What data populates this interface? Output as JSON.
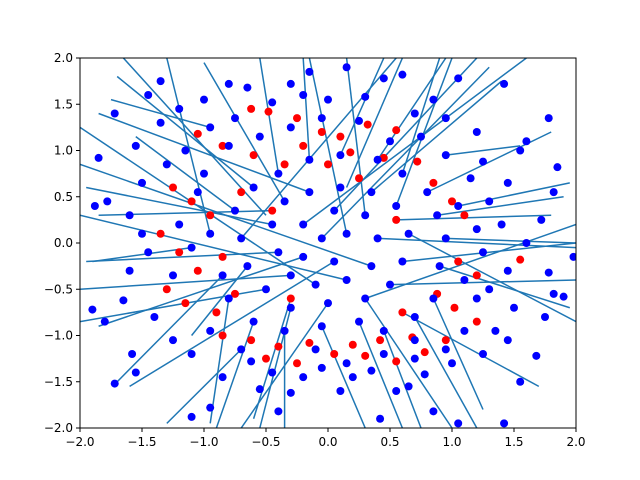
{
  "chart_data": {
    "type": "scatter",
    "title": "",
    "xlabel": "",
    "ylabel": "",
    "xlim": [
      -2.0,
      2.0
    ],
    "ylim": [
      -2.0,
      2.0
    ],
    "grid": false,
    "x_ticks": [
      "−2.0",
      "−1.5",
      "−1.0",
      "−0.5",
      "0.0",
      "0.5",
      "1.0",
      "1.5",
      "2.0"
    ],
    "y_ticks": [
      "−2.0",
      "−1.5",
      "−1.0",
      "−0.5",
      "0.0",
      "0.5",
      "1.0",
      "1.5",
      "2.0"
    ],
    "colors": {
      "line": "#1f77b4",
      "blue_points": "#0000ff",
      "red_points": "#ff0000",
      "axes": "#000000"
    },
    "series": [
      {
        "color": "red",
        "points": [
          [
            -0.62,
            1.45
          ],
          [
            -0.48,
            1.42
          ],
          [
            -0.25,
            1.35
          ],
          [
            -0.05,
            1.2
          ],
          [
            0.1,
            1.15
          ],
          [
            0.32,
            1.28
          ],
          [
            0.55,
            1.22
          ],
          [
            -1.05,
            1.18
          ],
          [
            -0.85,
            1.05
          ],
          [
            -0.6,
            0.95
          ],
          [
            -0.35,
            0.85
          ],
          [
            0.18,
            0.98
          ],
          [
            0.45,
            0.92
          ],
          [
            0.72,
            0.88
          ],
          [
            -1.25,
            0.6
          ],
          [
            -1.1,
            0.45
          ],
          [
            -0.95,
            0.3
          ],
          [
            -0.7,
            0.55
          ],
          [
            0.85,
            0.65
          ],
          [
            1.0,
            0.45
          ],
          [
            1.1,
            0.3
          ],
          [
            -1.35,
            0.1
          ],
          [
            -1.2,
            -0.1
          ],
          [
            -1.05,
            -0.3
          ],
          [
            -0.85,
            -0.15
          ],
          [
            1.05,
            -0.2
          ],
          [
            1.2,
            -0.35
          ],
          [
            1.55,
            -0.18
          ],
          [
            -1.3,
            -0.5
          ],
          [
            -1.15,
            -0.65
          ],
          [
            -0.9,
            -0.75
          ],
          [
            -0.75,
            -0.55
          ],
          [
            0.88,
            -0.55
          ],
          [
            1.02,
            -0.7
          ],
          [
            1.2,
            -0.85
          ],
          [
            -0.85,
            -1.0
          ],
          [
            -0.62,
            -1.05
          ],
          [
            -0.4,
            -1.12
          ],
          [
            -0.15,
            -1.08
          ],
          [
            0.2,
            -1.1
          ],
          [
            0.42,
            -1.05
          ],
          [
            0.68,
            -1.02
          ],
          [
            -0.5,
            -1.25
          ],
          [
            -0.25,
            -1.3
          ],
          [
            0.05,
            -1.2
          ],
          [
            0.3,
            -1.22
          ],
          [
            0.55,
            -1.28
          ],
          [
            0.78,
            -1.18
          ],
          [
            0.95,
            -1.05
          ],
          [
            -0.2,
            1.05
          ],
          [
            0.0,
            0.85
          ],
          [
            0.25,
            0.7
          ],
          [
            -0.45,
            0.35
          ],
          [
            0.55,
            0.25
          ],
          [
            -0.3,
            -0.6
          ],
          [
            0.6,
            -0.75
          ]
        ]
      },
      {
        "color": "blue",
        "points": [
          [
            -1.85,
            0.92
          ],
          [
            -1.72,
            1.4
          ],
          [
            -1.45,
            1.6
          ],
          [
            -1.35,
            1.75
          ],
          [
            -1.88,
            0.4
          ],
          [
            -1.78,
            0.45
          ],
          [
            -1.5,
            0.65
          ],
          [
            -1.9,
            -0.72
          ],
          [
            -1.8,
            -0.85
          ],
          [
            -1.65,
            -0.62
          ],
          [
            -1.58,
            -1.2
          ],
          [
            -1.72,
            -1.52
          ],
          [
            -1.55,
            -1.4
          ],
          [
            -1.1,
            -1.88
          ],
          [
            -0.95,
            -1.78
          ],
          [
            -0.62,
            -1.28
          ],
          [
            -0.4,
            -1.82
          ],
          [
            -0.2,
            -1.45
          ],
          [
            0.1,
            -1.6
          ],
          [
            0.35,
            -1.38
          ],
          [
            0.42,
            -1.9
          ],
          [
            0.65,
            -1.55
          ],
          [
            0.85,
            -1.82
          ],
          [
            1.05,
            -1.95
          ],
          [
            1.42,
            -1.95
          ],
          [
            1.55,
            -1.5
          ],
          [
            1.45,
            -1.05
          ],
          [
            1.68,
            -1.22
          ],
          [
            1.75,
            -0.8
          ],
          [
            1.82,
            -0.55
          ],
          [
            1.9,
            -0.58
          ],
          [
            1.78,
            -0.32
          ],
          [
            1.98,
            -0.15
          ],
          [
            1.72,
            0.25
          ],
          [
            1.82,
            0.55
          ],
          [
            1.85,
            0.82
          ],
          [
            1.55,
            1.0
          ],
          [
            1.78,
            1.35
          ],
          [
            1.42,
            1.72
          ],
          [
            1.05,
            1.78
          ],
          [
            0.85,
            1.55
          ],
          [
            0.6,
            1.82
          ],
          [
            0.45,
            1.78
          ],
          [
            0.15,
            1.9
          ],
          [
            -0.15,
            1.85
          ],
          [
            -0.3,
            1.72
          ],
          [
            -0.65,
            1.68
          ],
          [
            -0.8,
            1.72
          ],
          [
            -1.2,
            1.45
          ],
          [
            -1.35,
            1.3
          ],
          [
            -1.55,
            1.05
          ],
          [
            -1.6,
            0.3
          ],
          [
            -1.5,
            0.1
          ],
          [
            -1.45,
            -0.1
          ],
          [
            -1.6,
            -0.3
          ],
          [
            -1.4,
            -0.8
          ],
          [
            -1.25,
            -1.05
          ],
          [
            -1.1,
            -1.2
          ],
          [
            -0.85,
            -1.45
          ],
          [
            -0.55,
            -1.58
          ],
          [
            -0.3,
            -1.62
          ],
          [
            -0.05,
            -1.35
          ],
          [
            0.2,
            -1.45
          ],
          [
            0.55,
            -1.6
          ],
          [
            0.78,
            -1.42
          ],
          [
            1.0,
            -1.3
          ],
          [
            1.25,
            -1.2
          ],
          [
            1.35,
            -0.95
          ],
          [
            1.5,
            -0.7
          ],
          [
            1.3,
            -0.5
          ],
          [
            1.45,
            -0.3
          ],
          [
            1.6,
            0.0
          ],
          [
            1.4,
            0.2
          ],
          [
            1.3,
            0.45
          ],
          [
            1.45,
            0.65
          ],
          [
            1.25,
            0.88
          ],
          [
            1.2,
            1.2
          ],
          [
            0.95,
            1.35
          ],
          [
            0.7,
            1.4
          ],
          [
            0.3,
            1.58
          ],
          [
            0.0,
            1.55
          ],
          [
            -0.2,
            1.6
          ],
          [
            -0.45,
            1.52
          ],
          [
            -0.75,
            1.35
          ],
          [
            -0.95,
            1.25
          ],
          [
            -1.15,
            1.0
          ],
          [
            -1.3,
            0.85
          ],
          [
            -1.2,
            0.2
          ],
          [
            -1.1,
            -0.05
          ],
          [
            -1.25,
            -0.35
          ],
          [
            -0.95,
            -0.95
          ],
          [
            -0.7,
            -1.15
          ],
          [
            -0.45,
            -1.4
          ],
          [
            -0.1,
            -1.15
          ],
          [
            0.15,
            -1.3
          ],
          [
            0.45,
            -1.2
          ],
          [
            0.7,
            -1.25
          ],
          [
            0.95,
            -1.15
          ],
          [
            1.1,
            -0.95
          ],
          [
            1.2,
            -0.6
          ],
          [
            1.1,
            -0.4
          ],
          [
            1.25,
            -0.1
          ],
          [
            1.2,
            0.15
          ],
          [
            1.05,
            0.4
          ],
          [
            1.15,
            0.7
          ],
          [
            0.95,
            0.95
          ],
          [
            0.75,
            1.15
          ],
          [
            0.5,
            1.1
          ],
          [
            0.25,
            1.32
          ],
          [
            -0.05,
            1.35
          ],
          [
            -0.3,
            1.25
          ],
          [
            -0.55,
            1.15
          ],
          [
            -0.8,
            1.05
          ],
          [
            -1.0,
            0.75
          ],
          [
            -1.05,
            0.55
          ],
          [
            -0.95,
            0.1
          ],
          [
            -0.85,
            -0.35
          ],
          [
            -0.8,
            -0.6
          ],
          [
            -0.6,
            -0.85
          ],
          [
            -0.35,
            -0.95
          ],
          [
            -0.05,
            -0.9
          ],
          [
            0.25,
            -0.85
          ],
          [
            0.45,
            -0.95
          ],
          [
            0.7,
            -0.8
          ],
          [
            0.85,
            -0.6
          ],
          [
            0.9,
            -0.25
          ],
          [
            0.95,
            0.05
          ],
          [
            0.88,
            0.3
          ],
          [
            0.8,
            0.55
          ],
          [
            0.6,
            0.75
          ],
          [
            0.4,
            0.9
          ],
          [
            0.1,
            0.95
          ],
          [
            -0.15,
            0.9
          ],
          [
            -0.4,
            0.75
          ],
          [
            -0.6,
            0.6
          ],
          [
            -0.75,
            0.35
          ],
          [
            -0.7,
            0.05
          ],
          [
            -0.65,
            -0.25
          ],
          [
            -0.5,
            -0.5
          ],
          [
            -0.3,
            -0.7
          ],
          [
            0.0,
            -0.65
          ],
          [
            0.3,
            -0.6
          ],
          [
            0.5,
            -0.45
          ],
          [
            0.6,
            -0.2
          ],
          [
            0.65,
            0.1
          ],
          [
            0.55,
            0.4
          ],
          [
            0.35,
            0.55
          ],
          [
            0.1,
            0.6
          ],
          [
            -0.15,
            0.55
          ],
          [
            -0.35,
            0.45
          ],
          [
            -0.45,
            0.2
          ],
          [
            -0.4,
            -0.1
          ],
          [
            -0.3,
            -0.35
          ],
          [
            -0.1,
            -0.45
          ],
          [
            0.15,
            -0.4
          ],
          [
            0.35,
            -0.25
          ],
          [
            0.4,
            0.05
          ],
          [
            0.3,
            0.3
          ],
          [
            0.05,
            0.35
          ],
          [
            -0.2,
            0.2
          ],
          [
            -0.2,
            -0.15
          ],
          [
            0.05,
            -0.2
          ],
          [
            0.15,
            0.1
          ],
          [
            -0.05,
            0.05
          ],
          [
            0.7,
            -1.05
          ],
          [
            -1.0,
            1.55
          ],
          [
            1.6,
            1.1
          ]
        ]
      }
    ],
    "segments": [
      [
        -0.95,
        0.1,
        -1.3,
        2.0
      ],
      [
        -0.7,
        0.05,
        0.55,
        2.0
      ],
      [
        -0.5,
        0.3,
        -1.65,
        2.0
      ],
      [
        -0.4,
        0.75,
        -0.55,
        2.0
      ],
      [
        0.15,
        0.1,
        -0.15,
        2.0
      ],
      [
        0.3,
        0.3,
        0.15,
        2.0
      ],
      [
        0.55,
        0.4,
        1.0,
        2.0
      ],
      [
        0.6,
        0.75,
        0.9,
        2.0
      ],
      [
        -0.2,
        0.2,
        1.6,
        2.0
      ],
      [
        0.05,
        0.35,
        1.2,
        2.0
      ],
      [
        -0.1,
        -0.45,
        -2.0,
        1.25
      ],
      [
        0.15,
        -0.4,
        -2.0,
        0.3
      ],
      [
        -0.3,
        -0.35,
        -2.0,
        -0.5
      ],
      [
        -0.5,
        -0.5,
        -2.0,
        -0.85
      ],
      [
        0.35,
        -0.25,
        -2.0,
        0.85
      ],
      [
        0.4,
        0.05,
        2.0,
        -0.05
      ],
      [
        0.65,
        0.1,
        2.0,
        -0.85
      ],
      [
        0.6,
        -0.2,
        2.0,
        0.0
      ],
      [
        0.5,
        -0.45,
        2.0,
        -0.4
      ],
      [
        0.3,
        -0.6,
        2.0,
        0.2
      ],
      [
        0.0,
        -0.65,
        -0.7,
        -2.0
      ],
      [
        -0.3,
        -0.7,
        -0.55,
        -2.0
      ],
      [
        0.25,
        -0.85,
        0.6,
        -2.0
      ],
      [
        0.45,
        -0.95,
        0.75,
        -2.0
      ],
      [
        0.7,
        -0.8,
        1.2,
        -2.0
      ],
      [
        0.85,
        -0.6,
        1.25,
        -1.8
      ],
      [
        -0.65,
        -0.25,
        -1.1,
        -1.0
      ],
      [
        -0.85,
        -0.35,
        -1.7,
        -1.5
      ],
      [
        -0.8,
        -0.6,
        -0.95,
        -1.95
      ],
      [
        -0.6,
        -0.85,
        -0.9,
        -2.0
      ],
      [
        -0.35,
        -0.95,
        -0.35,
        -2.0
      ],
      [
        -0.05,
        -0.9,
        0.3,
        -2.0
      ],
      [
        -0.75,
        0.35,
        -1.55,
        1.15
      ],
      [
        -0.6,
        0.6,
        -1.7,
        1.8
      ],
      [
        -0.15,
        0.9,
        -0.2,
        2.0
      ],
      [
        0.1,
        0.95,
        0.45,
        2.0
      ],
      [
        0.4,
        0.9,
        0.95,
        2.0
      ],
      [
        0.8,
        0.55,
        1.8,
        1.2
      ],
      [
        0.88,
        0.3,
        1.9,
        0.5
      ],
      [
        0.95,
        0.05,
        2.0,
        0.0
      ],
      [
        0.9,
        -0.25,
        1.95,
        -0.7
      ],
      [
        -0.45,
        0.2,
        -1.95,
        0.6
      ],
      [
        -0.4,
        -0.1,
        -1.95,
        -0.2
      ],
      [
        -0.2,
        -0.15,
        -1.85,
        -0.9
      ],
      [
        0.05,
        -0.2,
        -1.6,
        -1.55
      ],
      [
        -0.05,
        0.05,
        1.3,
        1.9
      ],
      [
        0.15,
        0.6,
        0.6,
        2.0
      ],
      [
        -0.35,
        0.45,
        -1.0,
        1.95
      ],
      [
        0.35,
        0.55,
        1.4,
        1.75
      ],
      [
        -0.15,
        0.55,
        -1.85,
        1.4
      ],
      [
        0.55,
        0.25,
        1.8,
        0.3
      ],
      [
        -0.45,
        0.35,
        -1.85,
        0.3
      ],
      [
        0.3,
        -0.6,
        1.0,
        -2.0
      ],
      [
        -0.3,
        -0.6,
        -0.6,
        -1.9
      ],
      [
        0.6,
        -0.75,
        1.7,
        -1.55
      ],
      [
        -0.7,
        -1.15,
        -1.3,
        -1.95
      ],
      [
        0.95,
        0.95,
        1.55,
        1.05
      ],
      [
        -0.95,
        1.25,
        -1.75,
        1.55
      ],
      [
        -1.1,
        -0.05,
        -1.9,
        -0.2
      ],
      [
        1.05,
        0.4,
        1.95,
        0.65
      ]
    ]
  }
}
